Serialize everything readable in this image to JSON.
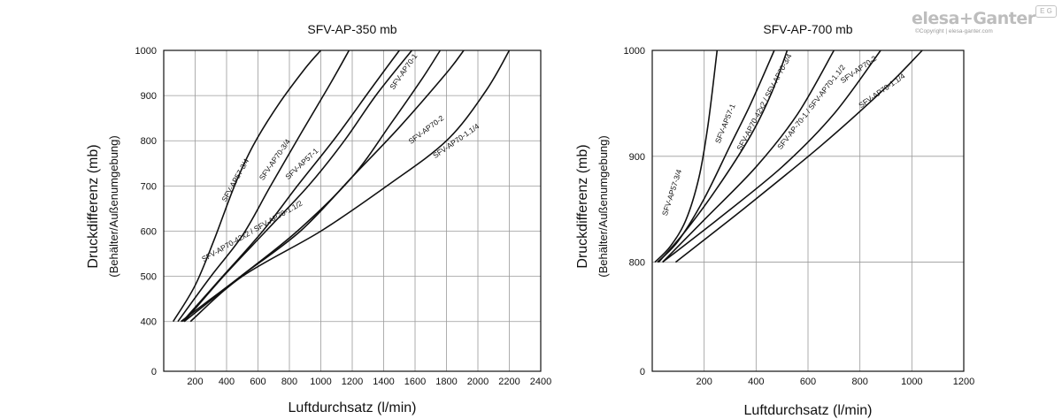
{
  "brand": {
    "logo_text": "elesa+Ganter",
    "copyright": "©Copyright | elesa-ganter.com",
    "badge": "E G"
  },
  "chart_data": [
    {
      "type": "line",
      "title": "SFV-AP-350 mb",
      "xlabel": "Luftdurchsatz (l/min)",
      "ylabel": "Druckdifferenz (mb)",
      "ylabel2": "(Behälter/Außenumgebung)",
      "xlim": [
        0,
        2400
      ],
      "ylim": [
        0,
        1000
      ],
      "x_ticks": [
        0,
        200,
        400,
        600,
        800,
        1000,
        1200,
        1400,
        1600,
        1800,
        2000,
        2200,
        2400
      ],
      "x_tick_labels": [
        "",
        "200",
        "400",
        "600",
        "800",
        "1000",
        "1200",
        "1400",
        "1600",
        "1800",
        "2000",
        "2200",
        "2400"
      ],
      "y_ticks": [
        400,
        500,
        600,
        700,
        800,
        900,
        1000
      ],
      "y_tick_labels": [
        "400",
        "500",
        "600",
        "700",
        "800",
        "900",
        "1000"
      ],
      "y_bottom_label": "0",
      "grid": true,
      "series": [
        {
          "name": "SFV-AP57-3/4",
          "label_at": [
            470,
            710
          ],
          "label_angle": -61,
          "points": [
            [
              60,
              400
            ],
            [
              200,
              480
            ],
            [
              320,
              580
            ],
            [
              450,
              700
            ],
            [
              570,
              790
            ],
            [
              730,
              880
            ],
            [
              900,
              960
            ],
            [
              1000,
              1000
            ]
          ]
        },
        {
          "name": "SFV-AP70-3/4",
          "label_at": [
            720,
            755
          ],
          "label_angle": -55,
          "points": [
            [
              90,
              400
            ],
            [
              300,
              500
            ],
            [
              500,
              590
            ],
            [
              680,
              700
            ],
            [
              880,
              820
            ],
            [
              1050,
              920
            ],
            [
              1180,
              1000
            ]
          ]
        },
        {
          "name": "SFV-AP57-1",
          "label_at": [
            890,
            745
          ],
          "label_angle": -43,
          "points": [
            [
              120,
              400
            ],
            [
              350,
              490
            ],
            [
              630,
              600
            ],
            [
              850,
              700
            ],
            [
              1100,
              810
            ],
            [
              1330,
              920
            ],
            [
              1500,
              1000
            ]
          ]
        },
        {
          "name": "SFV-AP70-1",
          "label_at": [
            1540,
            950
          ],
          "label_angle": -55,
          "points": [
            [
              130,
              400
            ],
            [
              380,
              500
            ],
            [
              650,
              600
            ],
            [
              920,
              700
            ],
            [
              1150,
              800
            ],
            [
              1350,
              900
            ],
            [
              1580,
              1000
            ]
          ]
        },
        {
          "name": "SFV-AP70-42x2 / SFV-AP70-1.1/2",
          "label_at": [
            570,
            595
          ],
          "label_angle": -30,
          "points": [
            [
              110,
              400
            ],
            [
              300,
              450
            ],
            [
              490,
              500
            ],
            [
              850,
              600
            ],
            [
              1200,
              720
            ],
            [
              1450,
              840
            ],
            [
              1650,
              940
            ],
            [
              1760,
              1000
            ]
          ]
        },
        {
          "name": "SFV-AP70-2",
          "label_at": [
            1680,
            820
          ],
          "label_angle": -37,
          "points": [
            [
              130,
              400
            ],
            [
              310,
              450
            ],
            [
              490,
              500
            ],
            [
              870,
              600
            ],
            [
              1200,
              720
            ],
            [
              1500,
              830
            ],
            [
              1800,
              950
            ],
            [
              1910,
              1000
            ]
          ]
        },
        {
          "name": "SFV-AP70-1.1/4",
          "label_at": [
            1870,
            795
          ],
          "label_angle": -35,
          "points": [
            [
              170,
              400
            ],
            [
              500,
              500
            ],
            [
              1000,
              600
            ],
            [
              1420,
              700
            ],
            [
              1800,
              800
            ],
            [
              2050,
              910
            ],
            [
              2200,
              1000
            ]
          ]
        }
      ]
    },
    {
      "type": "line",
      "title": "SFV-AP-700 mb",
      "xlabel": "Luftdurchsatz (l/min)",
      "ylabel": "Druckdifferenz (mb)",
      "ylabel2": "(Behälter/Außenumgebung)",
      "xlim": [
        0,
        1200
      ],
      "ylim": [
        700,
        1000
      ],
      "x_ticks": [
        0,
        200,
        400,
        600,
        800,
        1000,
        1200
      ],
      "x_tick_labels": [
        "",
        "200",
        "400",
        "600",
        "800",
        "1000",
        "1200"
      ],
      "y_ticks": [
        800,
        900,
        1000
      ],
      "y_tick_labels": [
        "800",
        "900",
        "1000"
      ],
      "y_bottom_label": "0",
      "grid": true,
      "series": [
        {
          "name": "SFV-AP57-3/4",
          "label_at": [
            85,
            865
          ],
          "label_angle": -72,
          "points": [
            [
              10,
              800
            ],
            [
              70,
              815
            ],
            [
              130,
              840
            ],
            [
              180,
              880
            ],
            [
              215,
              930
            ],
            [
              250,
              1000
            ]
          ]
        },
        {
          "name": "SFV-AP57-1",
          "label_at": [
            290,
            930
          ],
          "label_angle": -68,
          "points": [
            [
              20,
              800
            ],
            [
              100,
              820
            ],
            [
              200,
              860
            ],
            [
              300,
              910
            ],
            [
              380,
              950
            ],
            [
              470,
              1000
            ]
          ]
        },
        {
          "name": "SFV-AP70-42x2 / SFV-AP70-3/4",
          "label_at": [
            440,
            950
          ],
          "label_angle": -62,
          "points": [
            [
              25,
              800
            ],
            [
              130,
              830
            ],
            [
              250,
              870
            ],
            [
              380,
              920
            ],
            [
              460,
              960
            ],
            [
              520,
              1000
            ]
          ]
        },
        {
          "name": "SFV-AP-70-1 / SFV-AP70-1.1/2",
          "label_at": [
            620,
            945
          ],
          "label_angle": -52,
          "points": [
            [
              40,
              800
            ],
            [
              200,
              840
            ],
            [
              400,
              890
            ],
            [
              560,
              940
            ],
            [
              700,
              1000
            ]
          ]
        },
        {
          "name": "SFV-AP70-2",
          "label_at": [
            800,
            980
          ],
          "label_angle": -35,
          "points": [
            [
              40,
              800
            ],
            [
              250,
              840
            ],
            [
              500,
              890
            ],
            [
              700,
              940
            ],
            [
              880,
              1000
            ]
          ]
        },
        {
          "name": "SFV-AP70-1.1/4",
          "label_at": [
            890,
            960
          ],
          "label_angle": -35,
          "points": [
            [
              90,
              800
            ],
            [
              350,
              850
            ],
            [
              650,
              910
            ],
            [
              900,
              965
            ],
            [
              1040,
              1000
            ]
          ]
        }
      ]
    }
  ]
}
